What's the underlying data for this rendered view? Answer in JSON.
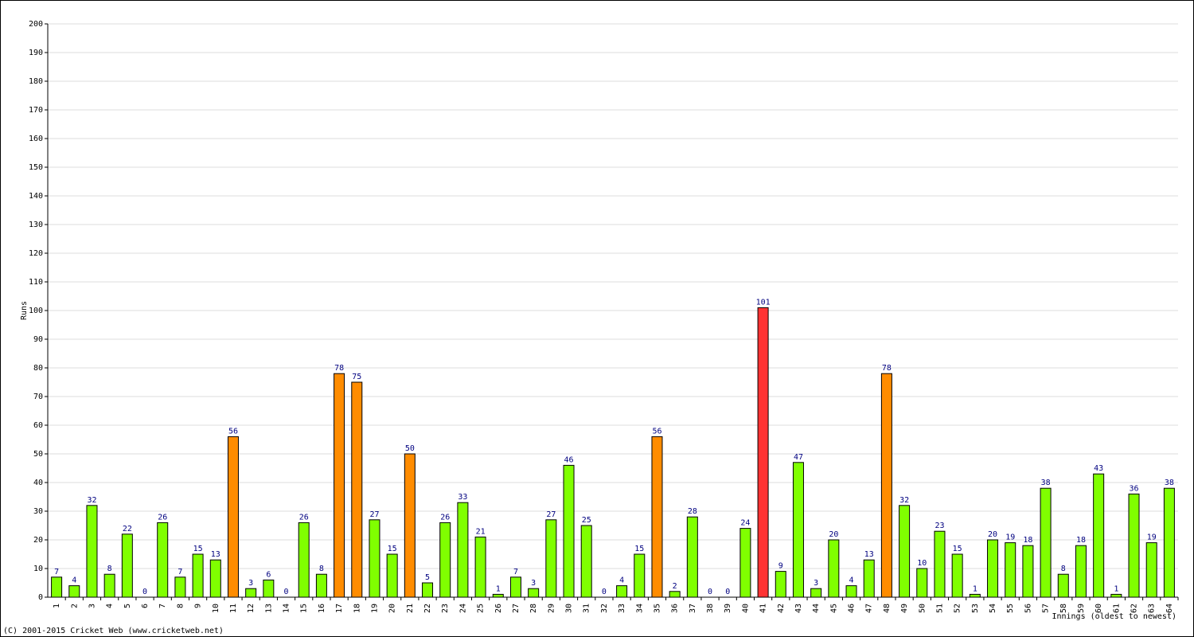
{
  "chart_data": {
    "type": "bar",
    "y_label": "Runs",
    "x_label": "Innings (oldest to newest)",
    "footer": "(C) 2001-2015 Cricket Web (www.cricketweb.net)",
    "categories": [
      "1",
      "2",
      "3",
      "4",
      "5",
      "6",
      "7",
      "8",
      "9",
      "10",
      "11",
      "12",
      "13",
      "14",
      "15",
      "16",
      "17",
      "18",
      "19",
      "20",
      "21",
      "22",
      "23",
      "24",
      "25",
      "26",
      "27",
      "28",
      "29",
      "30",
      "31",
      "32",
      "33",
      "34",
      "35",
      "36",
      "37",
      "38",
      "39",
      "40",
      "41",
      "42",
      "43",
      "44",
      "45",
      "46",
      "47",
      "48",
      "49",
      "50",
      "51",
      "52",
      "53",
      "54",
      "55",
      "56",
      "57",
      "58",
      "59",
      "60",
      "61",
      "62",
      "63",
      "64"
    ],
    "values": [
      7,
      4,
      32,
      8,
      22,
      0,
      26,
      7,
      15,
      13,
      56,
      3,
      6,
      0,
      26,
      8,
      78,
      75,
      27,
      15,
      50,
      5,
      26,
      33,
      21,
      1,
      7,
      3,
      27,
      46,
      25,
      0,
      4,
      15,
      56,
      2,
      28,
      0,
      0,
      24,
      101,
      9,
      47,
      3,
      20,
      4,
      13,
      78,
      32,
      10,
      23,
      15,
      1,
      20,
      19,
      18,
      38,
      8,
      18,
      43,
      1,
      36,
      19,
      38
    ],
    "colors": [
      "#80ff00",
      "#80ff00",
      "#80ff00",
      "#80ff00",
      "#80ff00",
      "#80ff00",
      "#80ff00",
      "#80ff00",
      "#80ff00",
      "#80ff00",
      "#ff8c00",
      "#80ff00",
      "#80ff00",
      "#80ff00",
      "#80ff00",
      "#80ff00",
      "#ff8c00",
      "#ff8c00",
      "#80ff00",
      "#80ff00",
      "#ff8c00",
      "#80ff00",
      "#80ff00",
      "#80ff00",
      "#80ff00",
      "#80ff00",
      "#80ff00",
      "#80ff00",
      "#80ff00",
      "#80ff00",
      "#80ff00",
      "#80ff00",
      "#80ff00",
      "#80ff00",
      "#ff8c00",
      "#80ff00",
      "#80ff00",
      "#80ff00",
      "#80ff00",
      "#80ff00",
      "#ff3333",
      "#80ff00",
      "#80ff00",
      "#80ff00",
      "#80ff00",
      "#80ff00",
      "#80ff00",
      "#ff8c00",
      "#80ff00",
      "#80ff00",
      "#80ff00",
      "#80ff00",
      "#80ff00",
      "#80ff00",
      "#80ff00",
      "#80ff00",
      "#80ff00",
      "#80ff00",
      "#80ff00",
      "#80ff00",
      "#80ff00",
      "#80ff00",
      "#80ff00",
      "#80ff00"
    ],
    "label_color": "#000080",
    "ylim": [
      0,
      200
    ],
    "yticks": [
      0,
      10,
      20,
      30,
      40,
      50,
      60,
      70,
      80,
      90,
      100,
      110,
      120,
      130,
      140,
      150,
      160,
      170,
      180,
      190,
      200
    ],
    "grid": true
  }
}
